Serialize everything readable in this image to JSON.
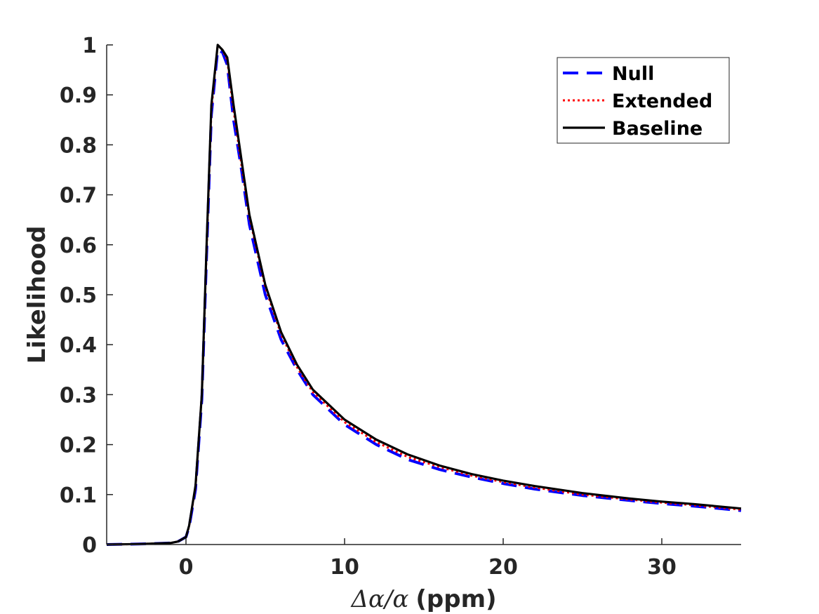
{
  "chart_data": {
    "type": "line",
    "xlabel_prefix": "Δα/α",
    "xlabel_unit": "(ppm)",
    "ylabel": "Likelihood",
    "xlim": [
      -5,
      35
    ],
    "ylim": [
      0,
      1
    ],
    "x_ticks": [
      0,
      10,
      20,
      30
    ],
    "y_ticks": [
      0,
      0.1,
      0.2,
      0.3,
      0.4,
      0.5,
      0.6,
      0.7,
      0.8,
      0.9,
      1
    ],
    "legend_position": "top-right",
    "grid": false,
    "series": [
      {
        "name": "Null",
        "color": "#0000ff",
        "style": "dashed",
        "x": [
          -5,
          -3,
          -2,
          -1,
          -0.5,
          0,
          0.2,
          0.6,
          1.0,
          1.3,
          1.6,
          2.0,
          2.3,
          2.6,
          3.0,
          3.5,
          4,
          5,
          6,
          7,
          8,
          10,
          12,
          14,
          16,
          18,
          20,
          22,
          25,
          28,
          30,
          32,
          35
        ],
        "y": [
          0,
          0.001,
          0.002,
          0.003,
          0.006,
          0.015,
          0.035,
          0.11,
          0.29,
          0.58,
          0.86,
          0.99,
          0.985,
          0.96,
          0.85,
          0.75,
          0.64,
          0.5,
          0.41,
          0.35,
          0.3,
          0.24,
          0.2,
          0.17,
          0.15,
          0.135,
          0.122,
          0.111,
          0.098,
          0.088,
          0.082,
          0.077,
          0.068
        ]
      },
      {
        "name": "Extended",
        "color": "#ff0000",
        "style": "dotted",
        "x": [
          -5,
          -3,
          -2,
          -1,
          -0.5,
          0,
          0.2,
          0.6,
          1.0,
          1.3,
          1.6,
          2.0,
          2.3,
          2.6,
          3.0,
          3.5,
          4,
          5,
          6,
          7,
          8,
          10,
          12,
          14,
          16,
          18,
          20,
          22,
          25,
          28,
          30,
          32,
          35
        ],
        "y": [
          0,
          0.001,
          0.002,
          0.003,
          0.006,
          0.015,
          0.037,
          0.115,
          0.3,
          0.59,
          0.87,
          1.0,
          0.99,
          0.97,
          0.87,
          0.76,
          0.655,
          0.515,
          0.42,
          0.355,
          0.305,
          0.245,
          0.205,
          0.175,
          0.155,
          0.138,
          0.125,
          0.114,
          0.1,
          0.09,
          0.084,
          0.079,
          0.07
        ]
      },
      {
        "name": "Baseline",
        "color": "#000000",
        "style": "solid",
        "x": [
          -5,
          -3,
          -2,
          -1,
          -0.5,
          0,
          0.2,
          0.6,
          1.0,
          1.3,
          1.6,
          2.0,
          2.3,
          2.6,
          3.0,
          3.5,
          4,
          5,
          6,
          7,
          8,
          10,
          12,
          14,
          16,
          18,
          20,
          22,
          25,
          28,
          30,
          32,
          35
        ],
        "y": [
          0,
          0.001,
          0.002,
          0.003,
          0.006,
          0.015,
          0.038,
          0.118,
          0.3,
          0.6,
          0.88,
          1.0,
          0.99,
          0.975,
          0.88,
          0.77,
          0.66,
          0.52,
          0.425,
          0.36,
          0.31,
          0.25,
          0.21,
          0.18,
          0.158,
          0.141,
          0.128,
          0.117,
          0.103,
          0.092,
          0.086,
          0.081,
          0.072
        ]
      }
    ]
  }
}
